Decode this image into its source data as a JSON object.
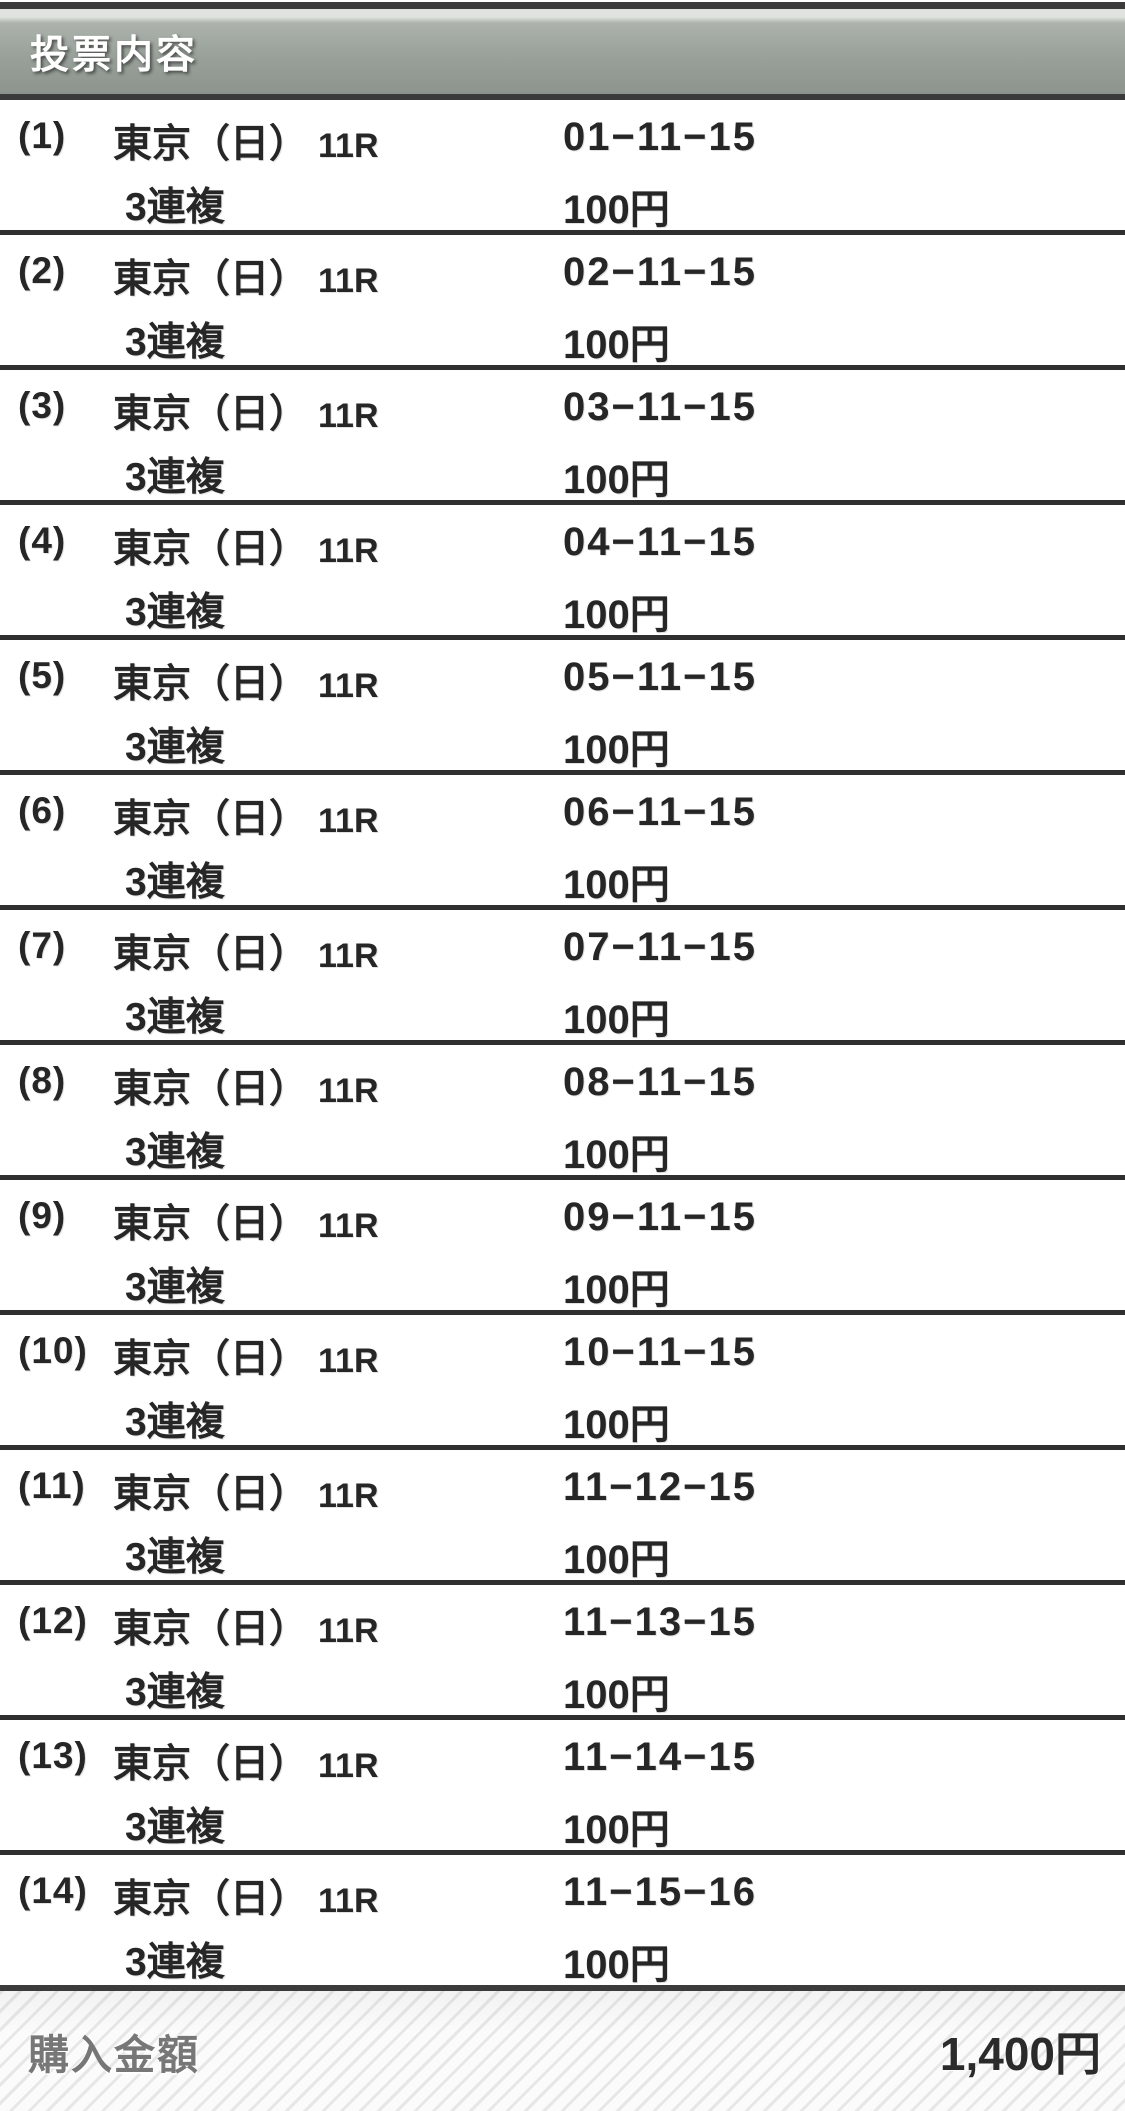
{
  "header": {
    "title": "投票内容"
  },
  "rows": [
    {
      "number": "(1)",
      "venue": "東京（日）",
      "race": "11R",
      "bet_type": "3連複",
      "combination": "01−11−15",
      "amount": "100円"
    },
    {
      "number": "(2)",
      "venue": "東京（日）",
      "race": "11R",
      "bet_type": "3連複",
      "combination": "02−11−15",
      "amount": "100円"
    },
    {
      "number": "(3)",
      "venue": "東京（日）",
      "race": "11R",
      "bet_type": "3連複",
      "combination": "03−11−15",
      "amount": "100円"
    },
    {
      "number": "(4)",
      "venue": "東京（日）",
      "race": "11R",
      "bet_type": "3連複",
      "combination": "04−11−15",
      "amount": "100円"
    },
    {
      "number": "(5)",
      "venue": "東京（日）",
      "race": "11R",
      "bet_type": "3連複",
      "combination": "05−11−15",
      "amount": "100円"
    },
    {
      "number": "(6)",
      "venue": "東京（日）",
      "race": "11R",
      "bet_type": "3連複",
      "combination": "06−11−15",
      "amount": "100円"
    },
    {
      "number": "(7)",
      "venue": "東京（日）",
      "race": "11R",
      "bet_type": "3連複",
      "combination": "07−11−15",
      "amount": "100円"
    },
    {
      "number": "(8)",
      "venue": "東京（日）",
      "race": "11R",
      "bet_type": "3連複",
      "combination": "08−11−15",
      "amount": "100円"
    },
    {
      "number": "(9)",
      "venue": "東京（日）",
      "race": "11R",
      "bet_type": "3連複",
      "combination": "09−11−15",
      "amount": "100円"
    },
    {
      "number": "(10)",
      "venue": "東京（日）",
      "race": "11R",
      "bet_type": "3連複",
      "combination": "10−11−15",
      "amount": "100円"
    },
    {
      "number": "(11)",
      "venue": "東京（日）",
      "race": "11R",
      "bet_type": "3連複",
      "combination": "11−12−15",
      "amount": "100円"
    },
    {
      "number": "(12)",
      "venue": "東京（日）",
      "race": "11R",
      "bet_type": "3連複",
      "combination": "11−13−15",
      "amount": "100円"
    },
    {
      "number": "(13)",
      "venue": "東京（日）",
      "race": "11R",
      "bet_type": "3連複",
      "combination": "11−14−15",
      "amount": "100円"
    },
    {
      "number": "(14)",
      "venue": "東京（日）",
      "race": "11R",
      "bet_type": "3連複",
      "combination": "11−15−16",
      "amount": "100円"
    }
  ],
  "footer": {
    "label": "購入金額",
    "total": "1,400円"
  },
  "colors": {
    "border_dark": "#3b3b3b",
    "separator": "#2f2f2f",
    "header_bg": "#939b94",
    "header_top_strip": "#dfe5de",
    "row_text": "#262626",
    "footer_label": "#777777",
    "footer_value": "#2b2b2b"
  }
}
